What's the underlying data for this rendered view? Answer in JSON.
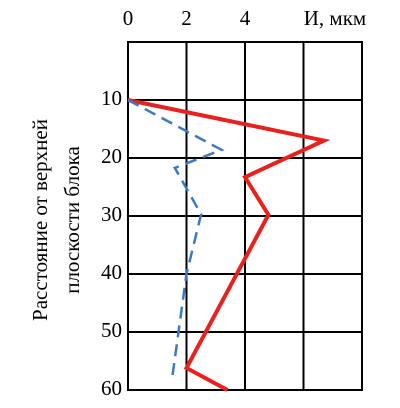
{
  "chart_data": {
    "type": "line",
    "xlabel": "И, мкм",
    "ylabel_lines": [
      "Расстояние от верхней",
      "плоскости блока"
    ],
    "xlim": [
      0,
      8
    ],
    "xticks": [
      0,
      2,
      4
    ],
    "xgrid": [
      0,
      2,
      4,
      6,
      8
    ],
    "ylim": [
      0,
      60
    ],
    "yticks": [
      10,
      20,
      30,
      40,
      50,
      60
    ],
    "y_inverted": true,
    "grid": true,
    "series": [
      {
        "color": "#e8211d",
        "dashed": false,
        "y": [
          10,
          17,
          23.3,
          29.8,
          56.2,
          60
        ],
        "values": [
          0,
          6.7,
          4.0,
          4.8,
          2.0,
          3.4
        ]
      },
      {
        "color": "#3a7abf",
        "dashed": true,
        "y": [
          10,
          18.6,
          21.7,
          29.7,
          40,
          58.3
        ],
        "values": [
          0,
          3.2,
          1.6,
          2.5,
          2.0,
          1.5
        ]
      }
    ]
  }
}
